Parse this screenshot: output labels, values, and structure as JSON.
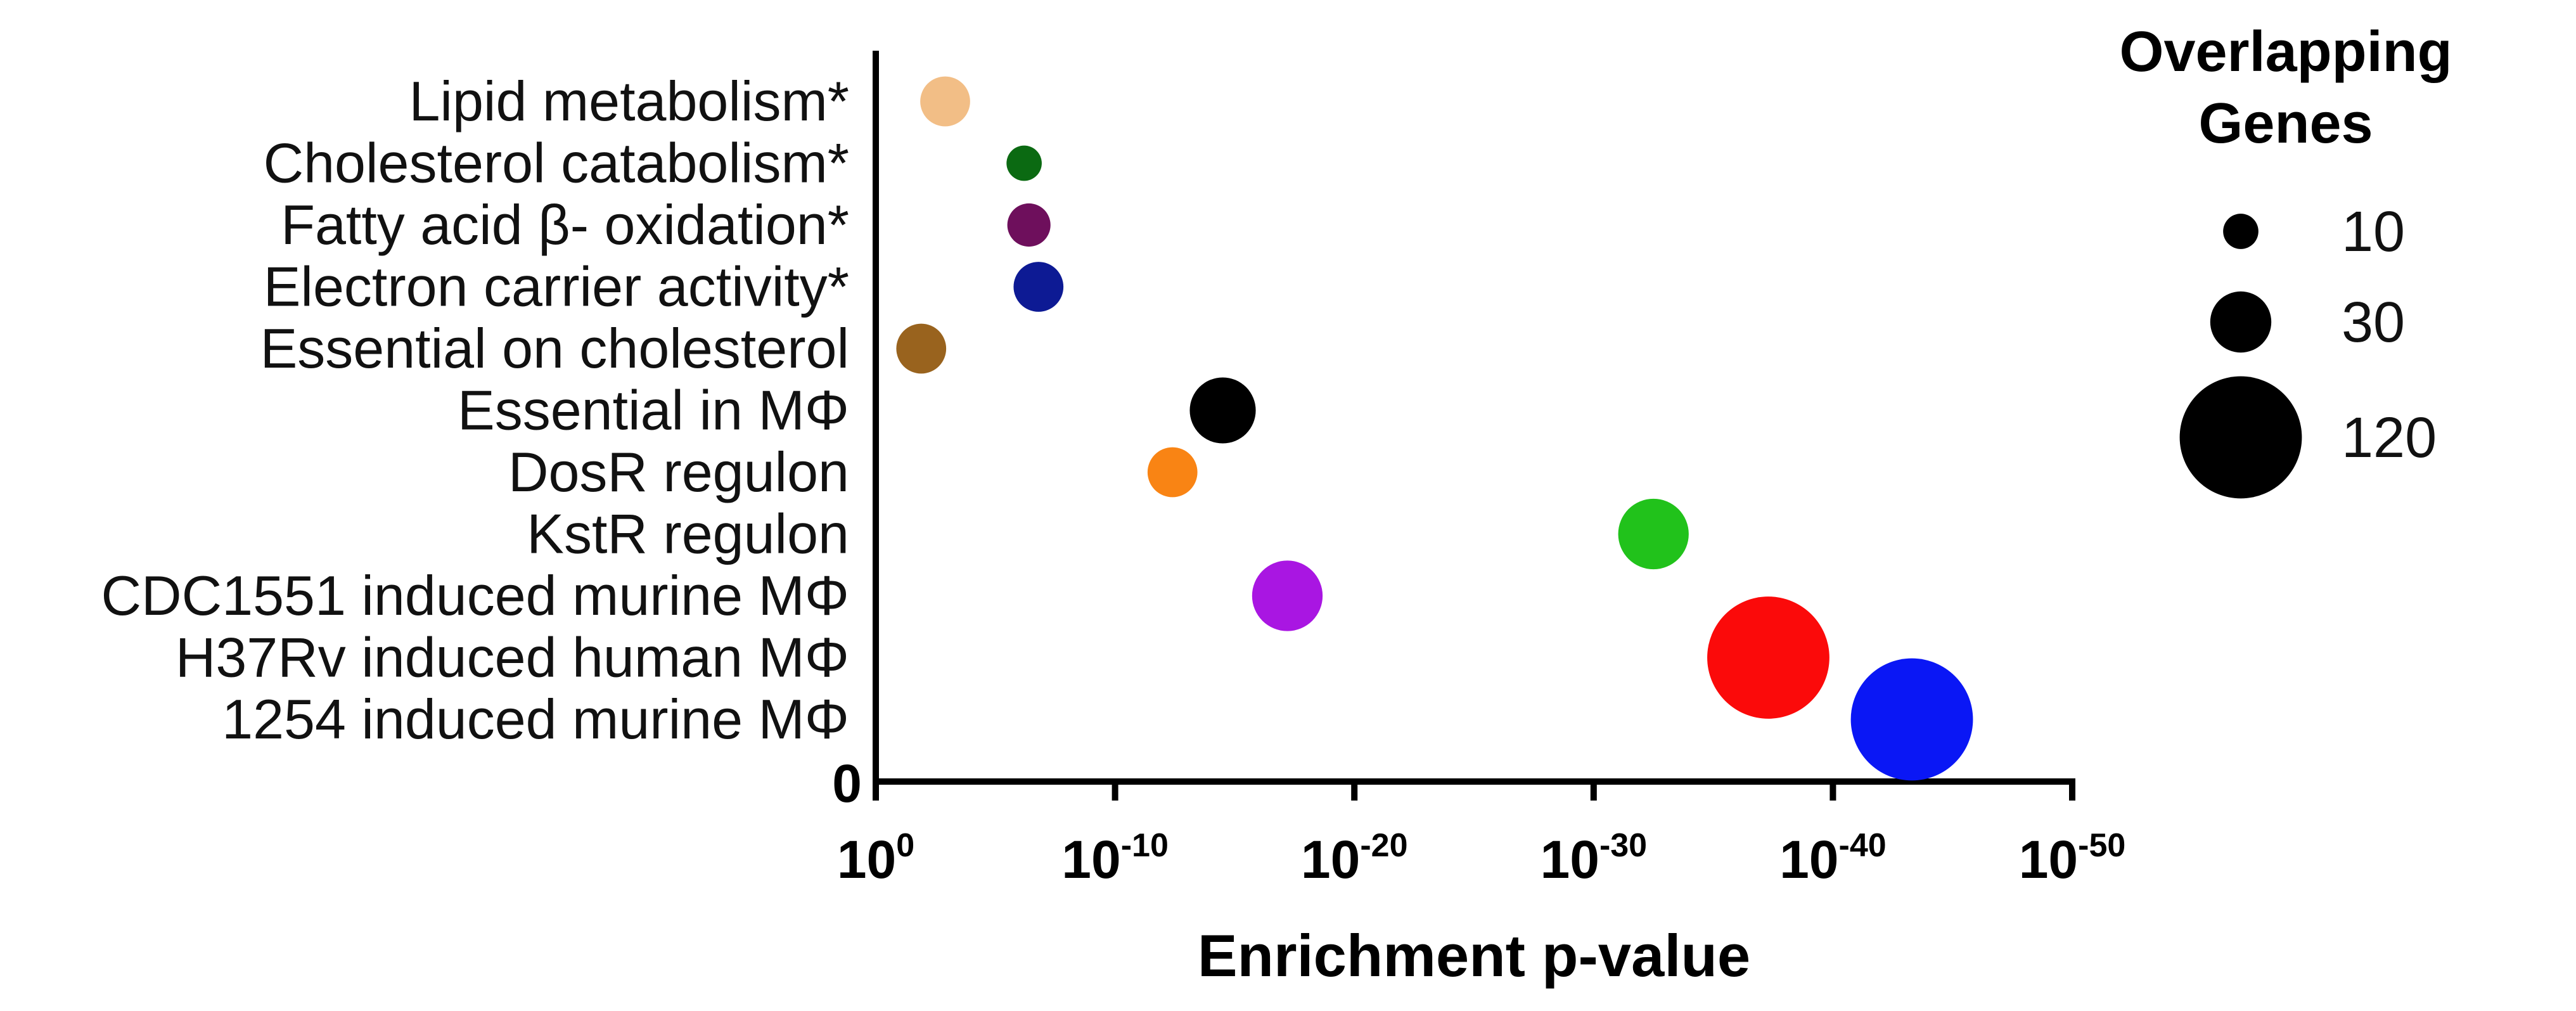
{
  "chart_data": {
    "type": "bubble",
    "title": "",
    "xlabel": "Enrichment p-value",
    "ylabel": "",
    "x_scale": "log10 (reversed, -log10 p)",
    "xlim": [
      0,
      50
    ],
    "x_ticks": [
      {
        "base": "10",
        "exp": "0"
      },
      {
        "base": "10",
        "exp": "-10"
      },
      {
        "base": "10",
        "exp": "-20"
      },
      {
        "base": "10",
        "exp": "-30"
      },
      {
        "base": "10",
        "exp": "-40"
      },
      {
        "base": "10",
        "exp": "-50"
      }
    ],
    "y_zero_label": "0",
    "categories": [
      "Lipid metabolism*",
      "Cholesterol catabolism*",
      "Fatty acid β- oxidation*",
      "Electron carrier activity*",
      "Essential on cholesterol",
      "Essential in MΦ",
      "DosR regulon",
      "KstR regulon",
      "CDC1551 induced murine MΦ",
      "H37Rv induced human MΦ",
      "1254 induced murine MΦ"
    ],
    "points": [
      {
        "category": "Lipid metabolism*",
        "neg_log10_p": 2.9,
        "genes": 20,
        "color": "#F2BE86"
      },
      {
        "category": "Cholesterol catabolism*",
        "neg_log10_p": 6.2,
        "genes": 10,
        "color": "#0B6A12"
      },
      {
        "category": "Fatty acid β- oxidation*",
        "neg_log10_p": 6.4,
        "genes": 15,
        "color": "#6E0F5C"
      },
      {
        "category": "Electron carrier activity*",
        "neg_log10_p": 6.8,
        "genes": 20,
        "color": "#0D1A94"
      },
      {
        "category": "Essential on cholesterol",
        "neg_log10_p": 1.9,
        "genes": 20,
        "color": "#99631E"
      },
      {
        "category": "Essential in MΦ",
        "neg_log10_p": 14.5,
        "genes": 35,
        "color": "#000000"
      },
      {
        "category": "DosR regulon",
        "neg_log10_p": 12.4,
        "genes": 20,
        "color": "#F98414"
      },
      {
        "category": "KstR regulon",
        "neg_log10_p": 32.5,
        "genes": 40,
        "color": "#21C21B"
      },
      {
        "category": "CDC1551 induced murine MΦ",
        "neg_log10_p": 17.2,
        "genes": 40,
        "color": "#A916E2"
      },
      {
        "category": "H37Rv induced human MΦ",
        "neg_log10_p": 37.3,
        "genes": 120,
        "color": "#FB0A0A"
      },
      {
        "category": "1254 induced murine MΦ",
        "neg_log10_p": 43.3,
        "genes": 120,
        "color": "#0A17F5"
      }
    ],
    "size_legend": {
      "title_line1": "Overlapping",
      "title_line2": "Genes",
      "entries": [
        {
          "genes": 10,
          "label": "10"
        },
        {
          "genes": 30,
          "label": "30"
        },
        {
          "genes": 120,
          "label": "120"
        }
      ]
    }
  }
}
